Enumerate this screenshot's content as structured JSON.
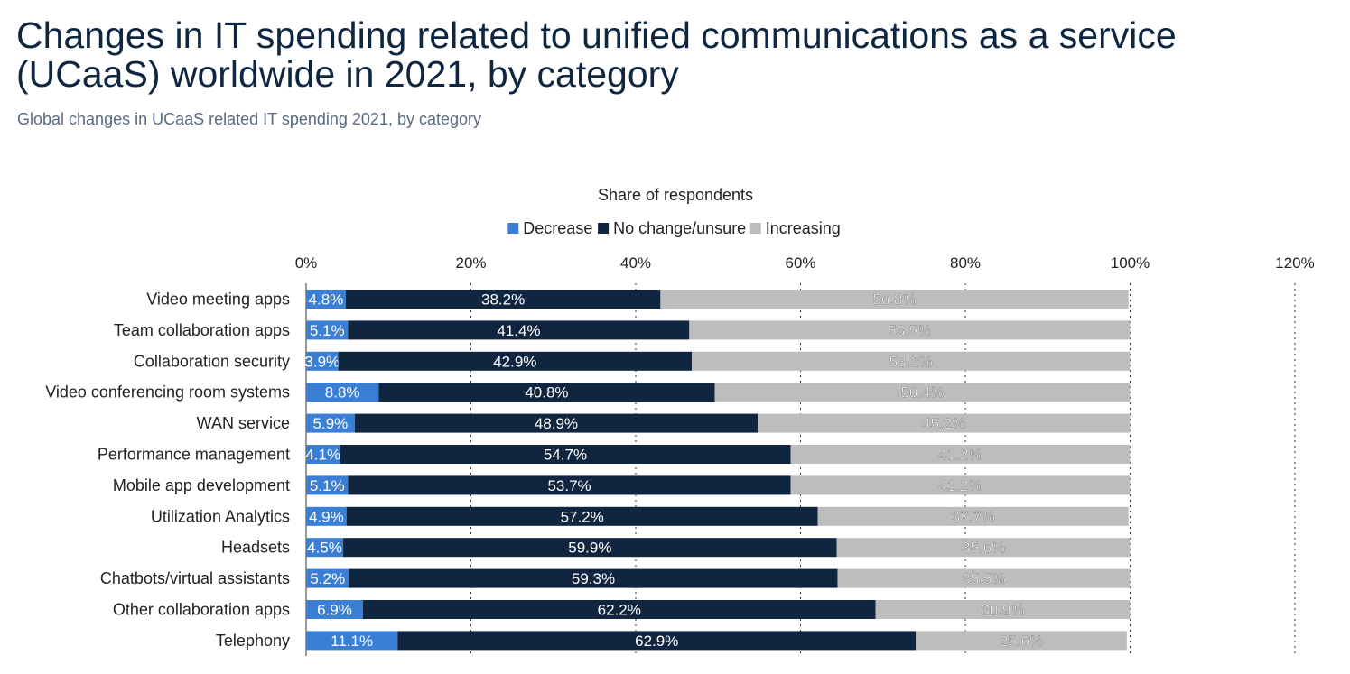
{
  "header": {
    "title": "Changes in IT spending related to unified communications as a service (UCaaS) worldwide in 2021, by category",
    "subtitle": "Global changes in UCaaS related IT spending 2021, by category"
  },
  "colors": {
    "decrease": "#3a7fd5",
    "no_change": "#10253f",
    "increasing": "#bdbdbd",
    "grid": "#333333"
  },
  "chart_data": {
    "type": "bar",
    "orientation": "horizontal",
    "stacked": true,
    "axis_title": "Share of respondents",
    "xlim": [
      0,
      120
    ],
    "x_ticks": [
      "0%",
      "20%",
      "40%",
      "60%",
      "80%",
      "100%",
      "120%"
    ],
    "x_tick_values": [
      0,
      20,
      40,
      60,
      80,
      100,
      120
    ],
    "legend_placement": "top-center",
    "grid": true,
    "categories": [
      "Video meeting apps",
      "Team collaboration apps",
      "Collaboration security",
      "Video conferencing room systems",
      "WAN service",
      "Performance management",
      "Mobile app development",
      "Utilization Analytics",
      "Headsets",
      "Chatbots/virtual assistants",
      "Other collaboration apps",
      "Telephony"
    ],
    "series": [
      {
        "name": "Decrease",
        "values": [
          4.8,
          5.1,
          3.9,
          8.8,
          5.9,
          4.1,
          5.1,
          4.9,
          4.5,
          5.2,
          6.9,
          11.1
        ],
        "labels": [
          "4.8%",
          "5.1%",
          "3.9%",
          "8.8%",
          "5.9%",
          "4.1%",
          "5.1%",
          "4.9%",
          "4.5%",
          "5.2%",
          "6.9%",
          "11.1%"
        ]
      },
      {
        "name": "No change/unsure",
        "values": [
          38.2,
          41.4,
          42.9,
          40.8,
          48.9,
          54.7,
          53.7,
          57.2,
          59.9,
          59.3,
          62.2,
          62.9
        ],
        "labels": [
          "38.2%",
          "41.4%",
          "42.9%",
          "40.8%",
          "48.9%",
          "54.7%",
          "53.7%",
          "57.2%",
          "59.9%",
          "59.3%",
          "62.2%",
          "62.9%"
        ]
      },
      {
        "name": "Increasing",
        "values": [
          56.8,
          53.5,
          53.2,
          50.4,
          45.2,
          41.2,
          41.2,
          37.7,
          35.6,
          35.5,
          30.9,
          25.6
        ],
        "labels": [
          "56.8%",
          "53.5%",
          "53.2%",
          "50.4%",
          "45.2%",
          "41.2%",
          "41.2%",
          "37.7%",
          "35.6%",
          "35.5%",
          "30.9%",
          "25.6%"
        ]
      }
    ]
  }
}
